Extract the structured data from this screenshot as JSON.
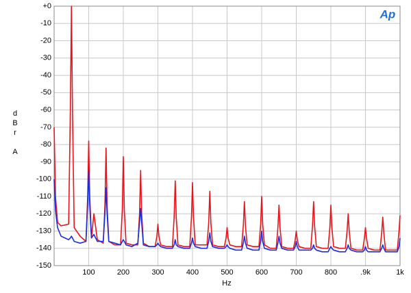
{
  "chart_data": {
    "type": "line",
    "logo": "Ap",
    "ylabel": "dBr A",
    "xlabel": "Hz",
    "grid": true,
    "xlim": [
      0,
      1000
    ],
    "ylim": [
      -150,
      0
    ],
    "xticks": [
      100,
      200,
      300,
      400,
      500,
      600,
      700,
      800,
      {
        "value": 900,
        "label": ".9k"
      },
      {
        "value": 1000,
        "label": "1k"
      }
    ],
    "yticks": [
      {
        "value": 0,
        "label": "+0"
      },
      -10,
      -20,
      -30,
      -40,
      -50,
      -60,
      -70,
      -80,
      -90,
      -100,
      -110,
      -120,
      -130,
      -140,
      -150
    ],
    "x": [
      0,
      4,
      10,
      20,
      42,
      47,
      50,
      53,
      58,
      75,
      92,
      97,
      100,
      103,
      108,
      115,
      125,
      142,
      147,
      150,
      153,
      158,
      175,
      192,
      197,
      200,
      203,
      208,
      225,
      242,
      247,
      250,
      253,
      258,
      275,
      292,
      297,
      300,
      303,
      308,
      325,
      342,
      347,
      350,
      353,
      358,
      375,
      392,
      397,
      400,
      403,
      408,
      425,
      442,
      447,
      450,
      453,
      458,
      475,
      492,
      497,
      500,
      503,
      508,
      525,
      542,
      547,
      550,
      553,
      558,
      575,
      592,
      597,
      600,
      603,
      608,
      625,
      642,
      647,
      650,
      653,
      658,
      675,
      692,
      697,
      700,
      703,
      708,
      725,
      742,
      747,
      750,
      753,
      758,
      775,
      792,
      797,
      800,
      803,
      808,
      825,
      842,
      847,
      850,
      853,
      858,
      875,
      892,
      897,
      900,
      903,
      908,
      925,
      942,
      947,
      950,
      953,
      958,
      975,
      992,
      997,
      1000
    ],
    "series": [
      {
        "color": "#e8141c",
        "values": [
          -70,
          -110,
          -125,
          -127,
          -126,
          -60,
          0,
          -60,
          -128,
          -133,
          -136,
          -110,
          -78,
          -110,
          -134,
          -120,
          -135,
          -137,
          -115,
          -82,
          -115,
          -136,
          -138,
          -138,
          -118,
          -87,
          -118,
          -137,
          -138,
          -138,
          -120,
          -95,
          -120,
          -137,
          -139,
          -139,
          -133,
          -126,
          -133,
          -138,
          -139,
          -139,
          -122,
          -101,
          -122,
          -138,
          -139,
          -139,
          -122,
          -102,
          -122,
          -138,
          -138,
          -138,
          -125,
          -107,
          -125,
          -138,
          -139,
          -139,
          -134,
          -128,
          -134,
          -138,
          -139,
          -139,
          -127,
          -113,
          -127,
          -138,
          -139,
          -139,
          -126,
          -110,
          -126,
          -138,
          -140,
          -140,
          -128,
          -115,
          -128,
          -139,
          -140,
          -140,
          -135,
          -130,
          -135,
          -139,
          -140,
          -140,
          -127,
          -113,
          -127,
          -139,
          -140,
          -140,
          -128,
          -115,
          -128,
          -139,
          -140,
          -140,
          -130,
          -120,
          -130,
          -140,
          -141,
          -141,
          -134,
          -128,
          -134,
          -140,
          -141,
          -141,
          -131,
          -122,
          -131,
          -141,
          -141,
          -141,
          -130,
          -121
        ]
      },
      {
        "color": "#1a2ee0",
        "values": [
          -100,
          -118,
          -128,
          -133,
          -135,
          -134,
          -133,
          -134,
          -136,
          -137,
          -136,
          -115,
          -95,
          -115,
          -134,
          -132,
          -136,
          -136,
          -120,
          -105,
          -120,
          -136,
          -137,
          -138,
          -136,
          -135,
          -136,
          -138,
          -139,
          -137,
          -125,
          -117,
          -125,
          -138,
          -139,
          -139,
          -138,
          -137,
          -138,
          -139,
          -140,
          -140,
          -138,
          -135,
          -138,
          -139,
          -140,
          -140,
          -137,
          -134,
          -137,
          -139,
          -140,
          -140,
          -136,
          -131,
          -136,
          -139,
          -140,
          -140,
          -139,
          -138,
          -139,
          -140,
          -141,
          -141,
          -137,
          -133,
          -137,
          -140,
          -141,
          -141,
          -136,
          -130,
          -136,
          -140,
          -141,
          -141,
          -137,
          -133,
          -137,
          -140,
          -141,
          -141,
          -139,
          -136,
          -139,
          -141,
          -141,
          -141,
          -140,
          -138,
          -140,
          -141,
          -142,
          -142,
          -140,
          -139,
          -140,
          -141,
          -142,
          -142,
          -140,
          -138,
          -140,
          -141,
          -142,
          -142,
          -141,
          -139,
          -141,
          -142,
          -142,
          -142,
          -140,
          -138,
          -140,
          -142,
          -142,
          -142,
          -139,
          -134
        ]
      }
    ]
  }
}
